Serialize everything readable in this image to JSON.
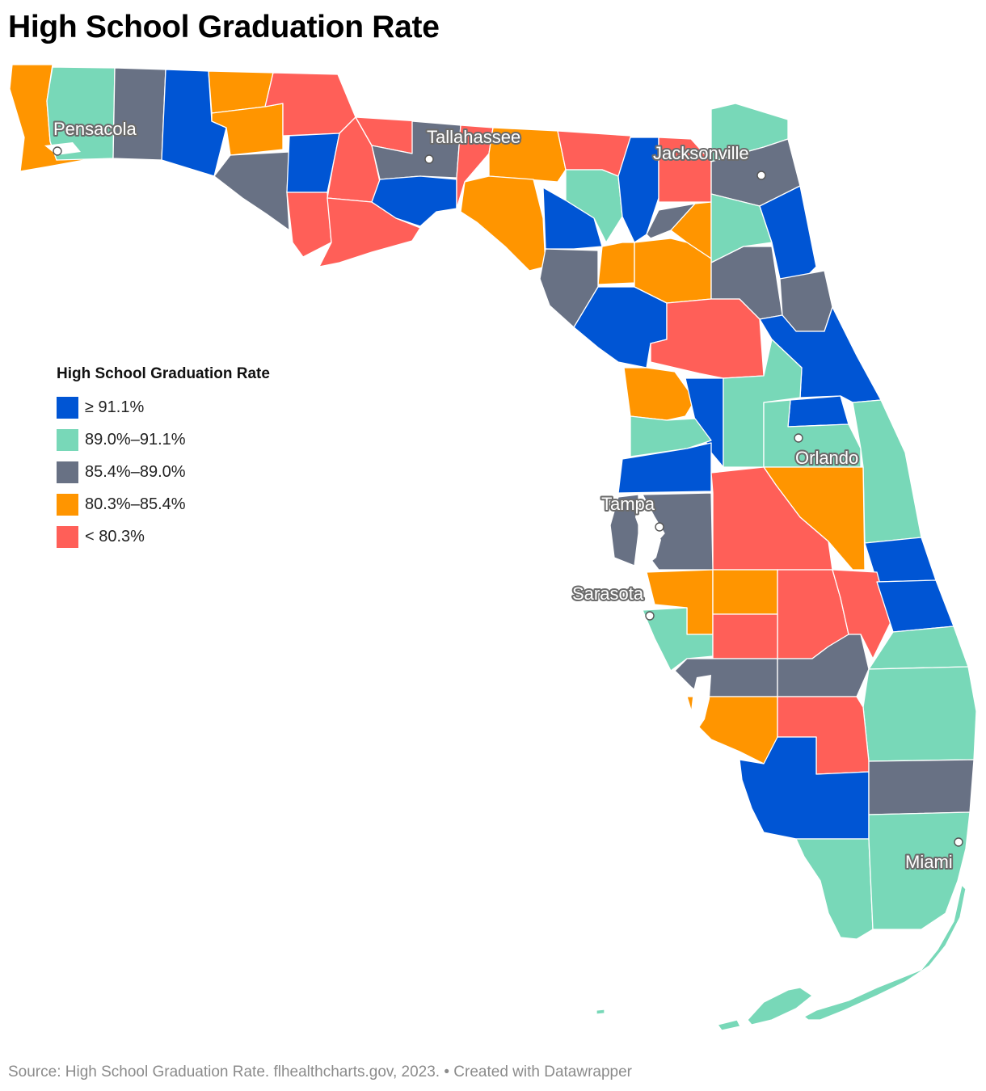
{
  "title": "High School Graduation Rate",
  "legend": {
    "title": "High School Graduation Rate",
    "items": [
      {
        "label": "≥ 91.1%",
        "color": "#0055d4"
      },
      {
        "label": "89.0%–91.1%",
        "color": "#78d8b8"
      },
      {
        "label": "85.4%–89.0%",
        "color": "#687184"
      },
      {
        "label": "80.3%–85.4%",
        "color": "#ff9500"
      },
      {
        "label": "< 80.3%",
        "color": "#ff5f58"
      }
    ]
  },
  "cities": {
    "pensacola": "Pensacola",
    "tallahassee": "Tallahassee",
    "jacksonville": "Jacksonville",
    "orlando": "Orlando",
    "tampa": "Tampa",
    "sarasota": "Sarasota",
    "miami": "Miami"
  },
  "footer": "Source: High School Graduation Rate. flhealthcharts.gov, 2023. • Created with Datawrapper"
}
